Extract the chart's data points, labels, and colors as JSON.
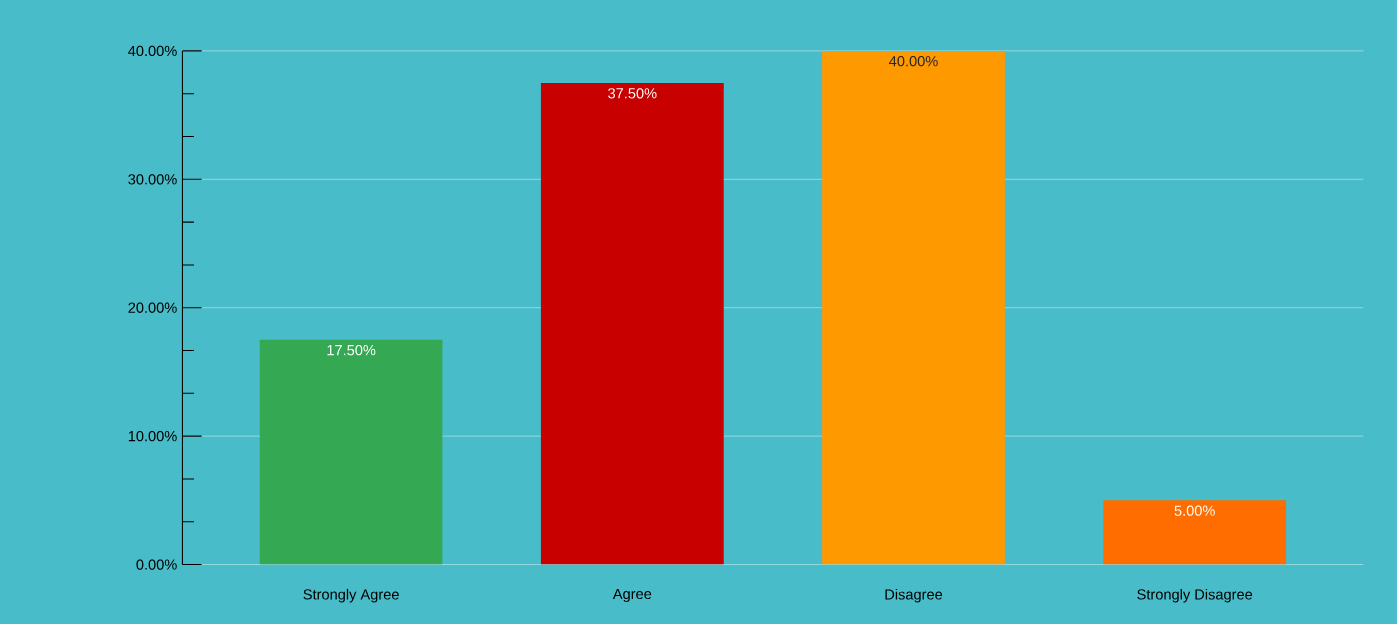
{
  "chart_data": {
    "type": "bar",
    "categories": [
      "Strongly Agree",
      "Agree",
      "Disagree",
      "Strongly Disagree"
    ],
    "values": [
      17.5,
      37.5,
      40,
      5
    ],
    "colors": [
      "#34a853",
      "#c80000",
      "#ff9900",
      "#ff6d00"
    ],
    "value_labels": [
      "17.50%",
      "37.50%",
      "40.00%",
      "5.00%"
    ],
    "ylim": [
      0,
      40
    ],
    "yticks": [
      {
        "value": 0,
        "label": "0.00%"
      },
      {
        "value": 10,
        "label": "10.00%"
      },
      {
        "value": 20,
        "label": "20.00%"
      },
      {
        "value": 30,
        "label": "30.00%"
      },
      {
        "value": 40,
        "label": "40.00%"
      }
    ],
    "grid": "y"
  }
}
